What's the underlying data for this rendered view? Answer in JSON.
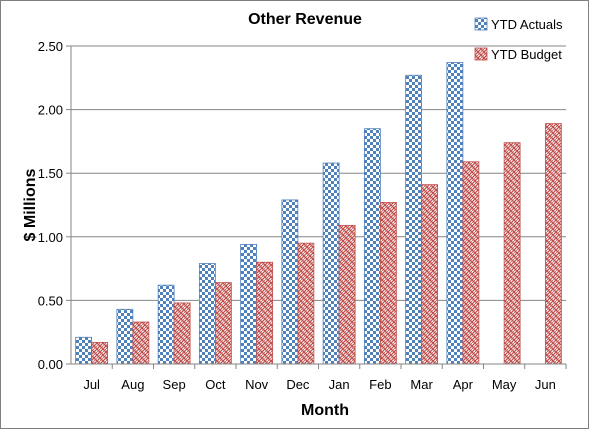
{
  "chart_data": {
    "type": "bar",
    "title": "Other Revenue",
    "xlabel": "Month",
    "ylabel": "$ Millions",
    "categories": [
      "Jul",
      "Aug",
      "Sep",
      "Oct",
      "Nov",
      "Dec",
      "Jan",
      "Feb",
      "Mar",
      "Apr",
      "May",
      "Jun"
    ],
    "series": [
      {
        "name": "YTD Actuals",
        "color": "#4f81bd",
        "pattern": "checker",
        "values": [
          0.21,
          0.43,
          0.62,
          0.79,
          0.94,
          1.29,
          1.58,
          1.85,
          2.27,
          2.37,
          null,
          null
        ]
      },
      {
        "name": "YTD Budget",
        "color": "#c0504d",
        "pattern": "weave",
        "values": [
          0.17,
          0.33,
          0.48,
          0.64,
          0.8,
          0.95,
          1.09,
          1.27,
          1.41,
          1.59,
          1.74,
          1.89
        ]
      }
    ],
    "ylim": [
      0,
      2.5
    ],
    "yticks": [
      "0.00",
      "0.50",
      "1.00",
      "1.50",
      "2.00",
      "2.50"
    ],
    "grid": true,
    "legend": "top-right"
  }
}
